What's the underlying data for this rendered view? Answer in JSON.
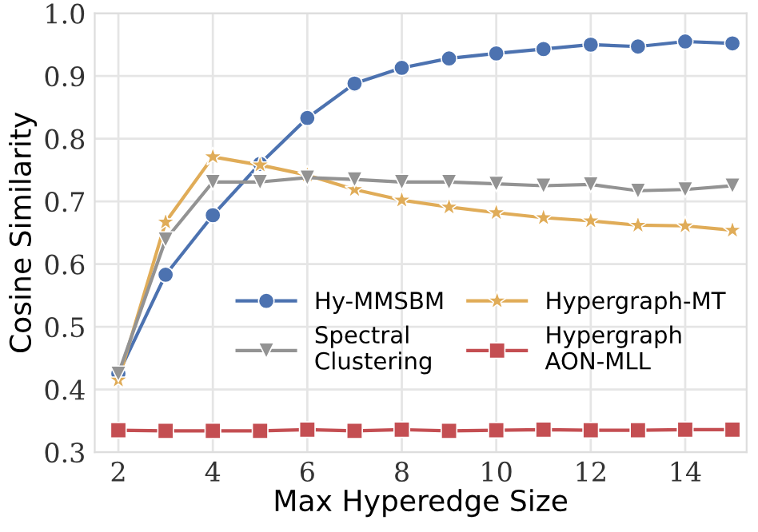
{
  "chart_data": {
    "type": "line",
    "xlabel": "Max Hyperedge Size",
    "ylabel": "Cosine Similarity",
    "x": [
      2,
      3,
      4,
      5,
      6,
      7,
      8,
      9,
      10,
      11,
      12,
      13,
      14,
      15
    ],
    "series": [
      {
        "name": "Hy-MMSBM",
        "color": "#4c72b0",
        "marker": "circle",
        "values": [
          0.425,
          0.583,
          0.678,
          0.76,
          0.833,
          0.888,
          0.913,
          0.928,
          0.936,
          0.943,
          0.95,
          0.947,
          0.955,
          0.952
        ]
      },
      {
        "name": "Hypergraph-MT",
        "color": "#e0ac58",
        "marker": "star",
        "values": [
          0.415,
          0.667,
          0.771,
          0.758,
          0.742,
          0.719,
          0.702,
          0.691,
          0.682,
          0.674,
          0.669,
          0.662,
          0.661,
          0.654
        ]
      },
      {
        "name": "Spectral\nClustering",
        "color": "#939393",
        "marker": "triangle",
        "values": [
          0.425,
          0.639,
          0.731,
          0.731,
          0.738,
          0.735,
          0.731,
          0.731,
          0.728,
          0.725,
          0.727,
          0.717,
          0.719,
          0.725
        ]
      },
      {
        "name": "Hypergraph\nAON-MLL",
        "color": "#c44e52",
        "marker": "square",
        "values": [
          0.335,
          0.334,
          0.334,
          0.334,
          0.336,
          0.334,
          0.336,
          0.334,
          0.335,
          0.336,
          0.335,
          0.335,
          0.336,
          0.336
        ]
      }
    ],
    "xlim": [
      1.5,
      15.3
    ],
    "ylim": [
      0.3,
      1.0
    ],
    "xticks": [
      2,
      4,
      6,
      8,
      10,
      12,
      14
    ],
    "yticks": [
      0.3,
      0.4,
      0.5,
      0.6,
      0.7,
      0.8,
      0.9,
      {
        "value": 1.0,
        "label": "1.0"
      }
    ],
    "grid": true,
    "legend": "bottom right",
    "line_style": "solid"
  }
}
